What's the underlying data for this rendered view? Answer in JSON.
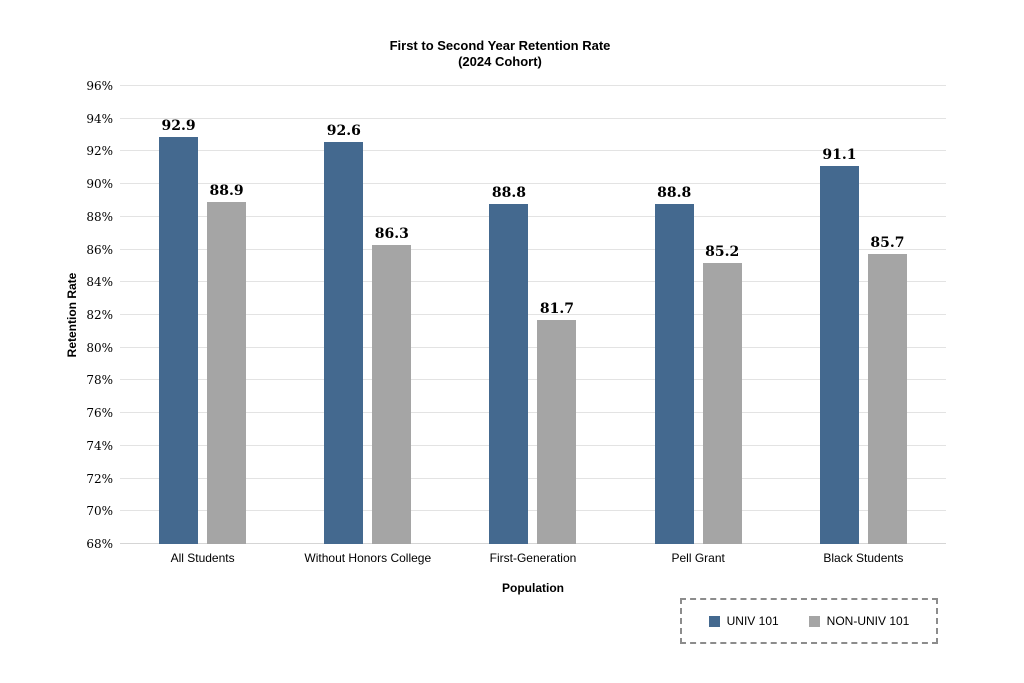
{
  "chart_data": {
    "type": "bar",
    "title": "First to Second Year Retention Rate",
    "subtitle": "(2024 Cohort)",
    "xlabel": "Population",
    "ylabel": "Retention Rate",
    "ylim": [
      68,
      96
    ],
    "ytick_step": 2,
    "ytick_suffix": "%",
    "grid": true,
    "legend_position": "bottom-right",
    "categories": [
      "All Students",
      "Without Honors College",
      "First-Generation",
      "Pell Grant",
      "Black Students"
    ],
    "series": [
      {
        "name": "UNIV 101",
        "color": "#44698F",
        "values": [
          92.9,
          92.6,
          88.8,
          88.8,
          91.1
        ]
      },
      {
        "name": "NON-UNIV 101",
        "color": "#A5A5A5",
        "values": [
          88.9,
          86.3,
          81.7,
          85.2,
          85.7
        ]
      }
    ]
  },
  "colors": {
    "gridline": "#E3E3E3",
    "baseline": "#D5D5D5",
    "legend_border": "#8C8C8C",
    "text": "#000000"
  }
}
